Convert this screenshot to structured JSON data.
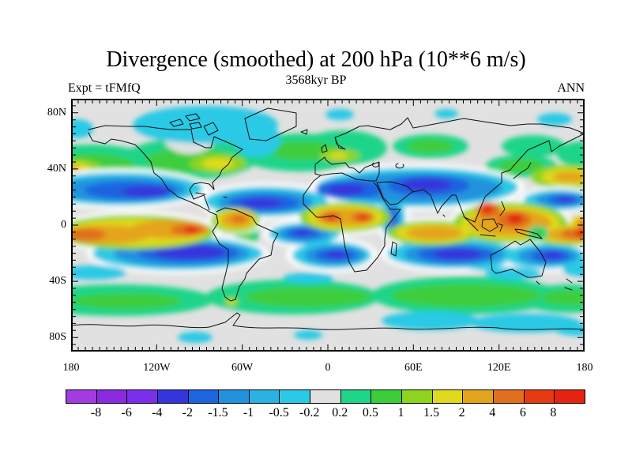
{
  "title": "Divergence (smoothed) at 200 hPa (10**6 m/s)",
  "subtitle": "3568kyr BP",
  "experiment_label": "Expt = tFMfQ",
  "season_label": "ANN",
  "map_axes": {
    "y_axis_labels": [
      "80N",
      "40N",
      "0",
      "40S",
      "80S"
    ],
    "x_axis_labels": [
      "180",
      "120W",
      "60W",
      "0",
      "60E",
      "120E",
      "180"
    ]
  },
  "colorbar": {
    "tick_labels": [
      "-8",
      "-6",
      "-4",
      "-2",
      "-1.5",
      "-1",
      "-0.5",
      "-0.2",
      "0.2",
      "0.5",
      "1",
      "1.5",
      "2",
      "4",
      "6",
      "8"
    ],
    "segment_colors": [
      "#A23BE2",
      "#8A2BE2",
      "#7A30E8",
      "#3535DC",
      "#1D64E0",
      "#2292DF",
      "#2AB2E3",
      "#2AC9E5",
      "#E1E1E1",
      "#1FD588",
      "#3CCD3C",
      "#8FD321",
      "#DFDA1F",
      "#E4A51E",
      "#E0701D",
      "#E63A12",
      "#E5230F"
    ]
  },
  "chart_data": {
    "type": "heatmap",
    "title": "Divergence (smoothed) at 200 hPa (10**6 m/s)",
    "subtitle": "3568kyr BP",
    "experiment": "Expt = tFMfQ",
    "season": "ANN",
    "projection": "equirectangular world map with coastlines",
    "x": {
      "label": "longitude",
      "range_deg": [
        -180,
        180
      ],
      "tick_labels": [
        "180",
        "120W",
        "60W",
        "0",
        "60E",
        "120E",
        "180"
      ]
    },
    "y": {
      "label": "latitude",
      "range_deg": [
        -90,
        90
      ],
      "tick_labels": [
        "80N",
        "40N",
        "0",
        "40S",
        "80S"
      ]
    },
    "contour_levels": [
      -8,
      -6,
      -4,
      -2,
      -1.5,
      -1,
      -0.5,
      -0.2,
      0.2,
      0.5,
      1,
      1.5,
      2,
      4,
      6,
      8
    ],
    "units": "10**6 m/s",
    "palette_hex": [
      "#A23BE2",
      "#8A2BE2",
      "#7A30E8",
      "#3535DC",
      "#1D64E0",
      "#2292DF",
      "#2AB2E3",
      "#2AC9E5",
      "#E1E1E1",
      "#1FD588",
      "#3CCD3C",
      "#8FD321",
      "#DFDA1F",
      "#E4A51E",
      "#E0701D",
      "#E63A12",
      "#E5230F"
    ],
    "features": [
      {
        "region": "equatorial east Pacific (180-80W, 10S-5N)",
        "value_range": "1 to 6",
        "color": "yellow-orange band with orange core near 100W"
      },
      {
        "region": "northern South America (75-55W, 0-8N)",
        "value_range": "1 to 4",
        "color": "orange patch"
      },
      {
        "region": "equatorial Atlantic (40-10W, 0-10S)",
        "value_range": "-2 to -0.2",
        "color": "blue with dark core"
      },
      {
        "region": "central Africa (10W-35E, 0-10N)",
        "value_range": "1 to 6",
        "color": "orange with two darker cores"
      },
      {
        "region": "equatorial Indian Ocean (55-105E, 0-10S)",
        "value_range": "1 to 4",
        "color": "yellow-orange band"
      },
      {
        "region": "Bay of Bengal / Maritime Continent (85-155E, 10S-15N)",
        "value_range": "2 to 8",
        "color": "broad orange with red cores over Borneo and Bay of Bengal"
      },
      {
        "region": "west Pacific 5-10S to 180",
        "value_range": "2 to 8",
        "color": "orange band with red core near date line"
      },
      {
        "region": "subtropical NE Pacific (180-100W, 15-30N)",
        "value_range": "-4 to -0.2",
        "color": "nested blue band"
      },
      {
        "region": "subtropical Atlantic/Caribbean (75-20W, 12-25N)",
        "value_range": "-4 to -0.2",
        "color": "nested blue band"
      },
      {
        "region": "North Africa to Tibet (0-100E, 15-35N)",
        "value_range": "-4 to -0.2",
        "color": "large blue band, dark cores over Sahara and India/Tibet"
      },
      {
        "region": "west Pacific (140E-180, 10-22N)",
        "value_range": "-4 to -0.2",
        "color": "blue blob"
      },
      {
        "region": "NW Pacific east of Japan (120E-180, 25-38N)",
        "value_range": "1 to 4",
        "color": "yellow/orange band"
      },
      {
        "region": "subtropical S Pacific (160-60W, 10-27S)",
        "value_range": "-4 to -0.2",
        "color": "large dark blue band"
      },
      {
        "region": "S Atlantic / SW Africa (15W-20E, 8-28S)",
        "value_range": "-4 to -0.2",
        "color": "blue blob"
      },
      {
        "region": "S Indian Ocean (55-110E, 8-28S)",
        "value_range": "-4 to -0.2",
        "color": "large dark blue blob"
      },
      {
        "region": "Coral Sea east of Australia (145-175E, 10-28S)",
        "value_range": "-4 to -0.2",
        "color": "blue blob"
      },
      {
        "region": "mid-latitude N band (35-55N)",
        "value_range": "0.2 to 2",
        "color": "green band with yellow cores over E North America, far NE Pacific, Europe"
      },
      {
        "region": "mid-latitude S band (45-62S)",
        "value_range": "0.2 to 1",
        "color": "circumglobal green band, small yellow spot near Cape Horn"
      },
      {
        "region": "polar caps and weak areas",
        "value_range": "-0.2 to 0.2",
        "color": "light gray"
      },
      {
        "region": "Arctic Canada/Greenland, Antarctic coast, 30-40S patches",
        "value_range": "-0.5 to -0.2",
        "color": "cyan patches"
      }
    ],
    "legend_position": "horizontal colorbar at bottom",
    "grid": false
  }
}
